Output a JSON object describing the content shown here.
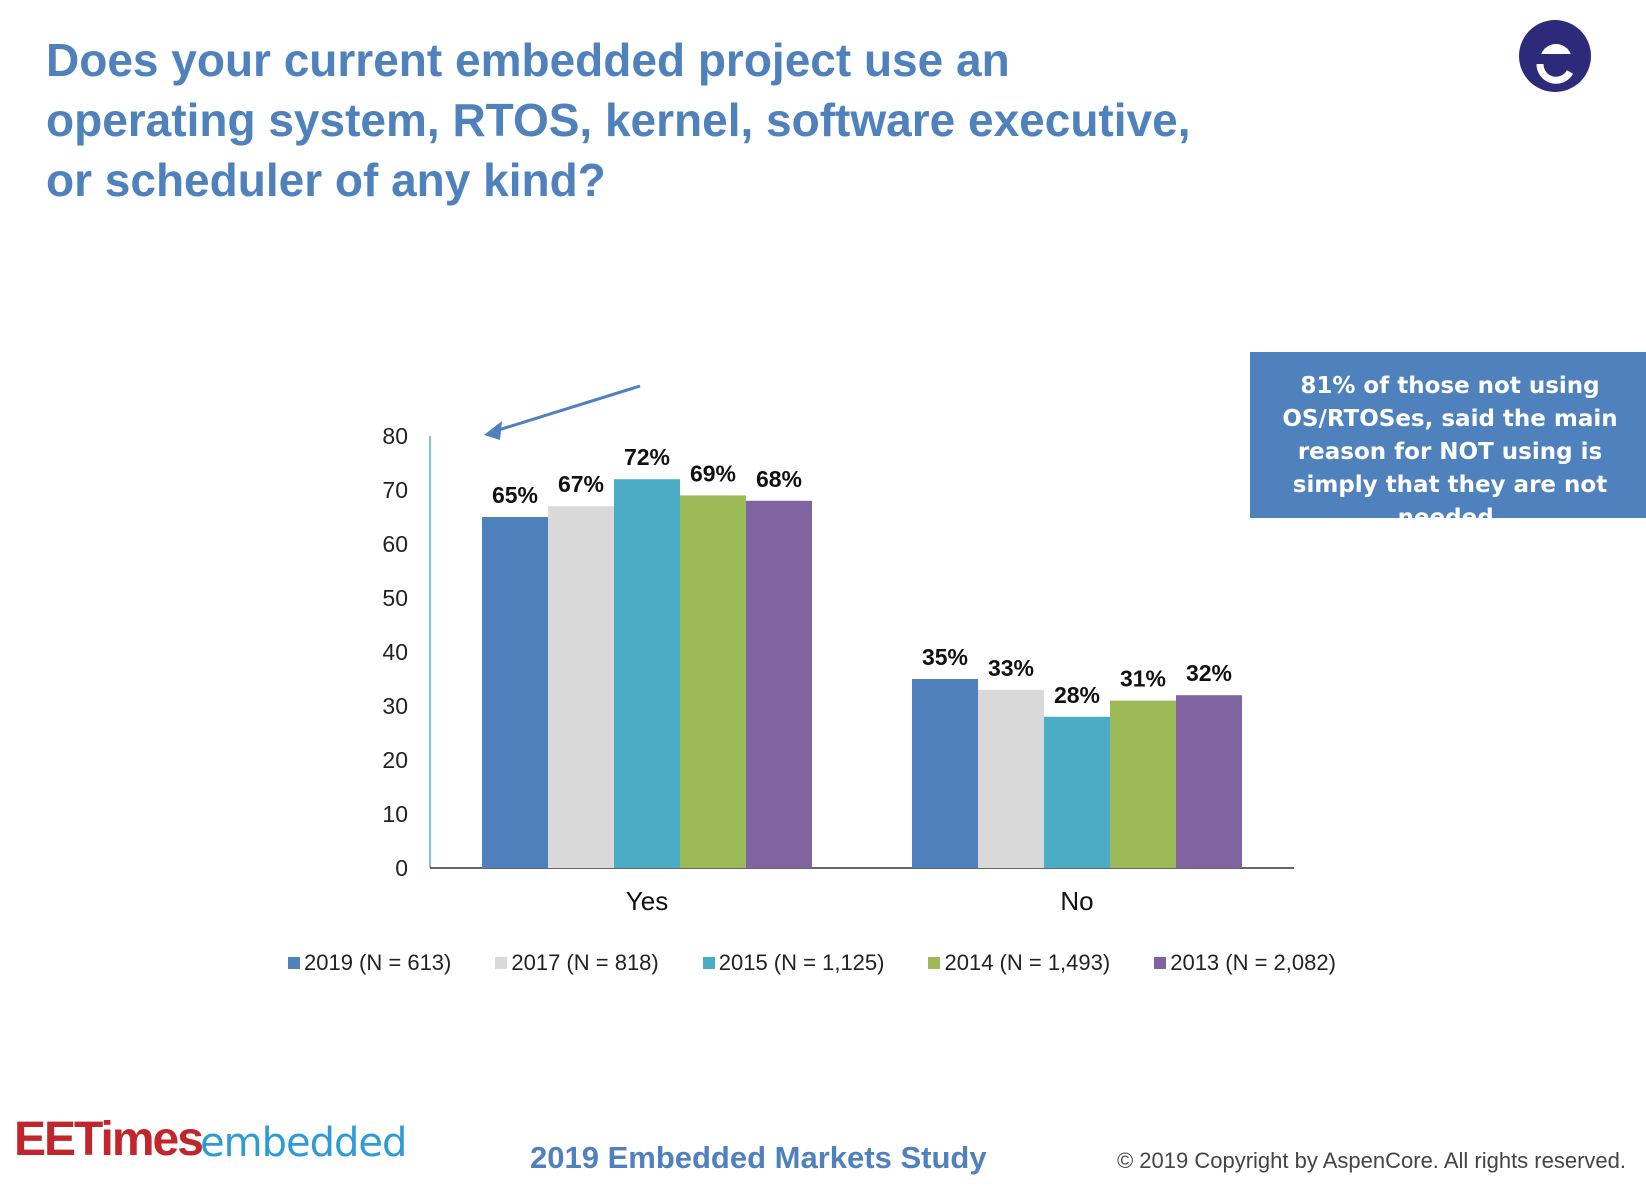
{
  "title": "Does your current embedded project use an operating system, RTOS, kernel, software executive, or scheduler of any kind?",
  "callout": "81% of those not using OS/RTOSes, said the main reason for NOT using is simply that they are not needed.",
  "footer": {
    "brand_ee": "EETimes",
    "brand_embedded": "embedded",
    "study": "2019 Embedded Markets Study",
    "copyright": "© 2019 Copyright by AspenCore. All rights reserved."
  },
  "logo": {
    "letter": "a",
    "color": "#2E2A7A"
  },
  "chart_data": {
    "type": "bar",
    "title": "",
    "xlabel": "",
    "ylabel": "",
    "categories": [
      "Yes",
      "No"
    ],
    "ylim": [
      0,
      80
    ],
    "yticks": [
      "0",
      "10",
      "20",
      "30",
      "40",
      "50",
      "60",
      "70",
      "80"
    ],
    "legend_position": "bottom",
    "grid": false,
    "series": [
      {
        "name": "2019 (N = 613)",
        "color": "#4F81BD",
        "values": [
          65,
          35
        ],
        "labels": [
          "65%",
          "35%"
        ]
      },
      {
        "name": "2017 (N = 818)",
        "color": "#D9D9D9",
        "values": [
          67,
          33
        ],
        "labels": [
          "67%",
          "33%"
        ]
      },
      {
        "name": "2015 (N = 1,125)",
        "color": "#4BACC6",
        "values": [
          72,
          28
        ],
        "labels": [
          "72%",
          "28%"
        ]
      },
      {
        "name": "2014 (N = 1,493)",
        "color": "#9BBB59",
        "values": [
          69,
          31
        ],
        "labels": [
          "69%",
          "31%"
        ]
      },
      {
        "name": "2013 (N = 2,082)",
        "color": "#8064A2",
        "values": [
          68,
          32
        ],
        "labels": [
          "68%",
          "32%"
        ]
      }
    ]
  }
}
